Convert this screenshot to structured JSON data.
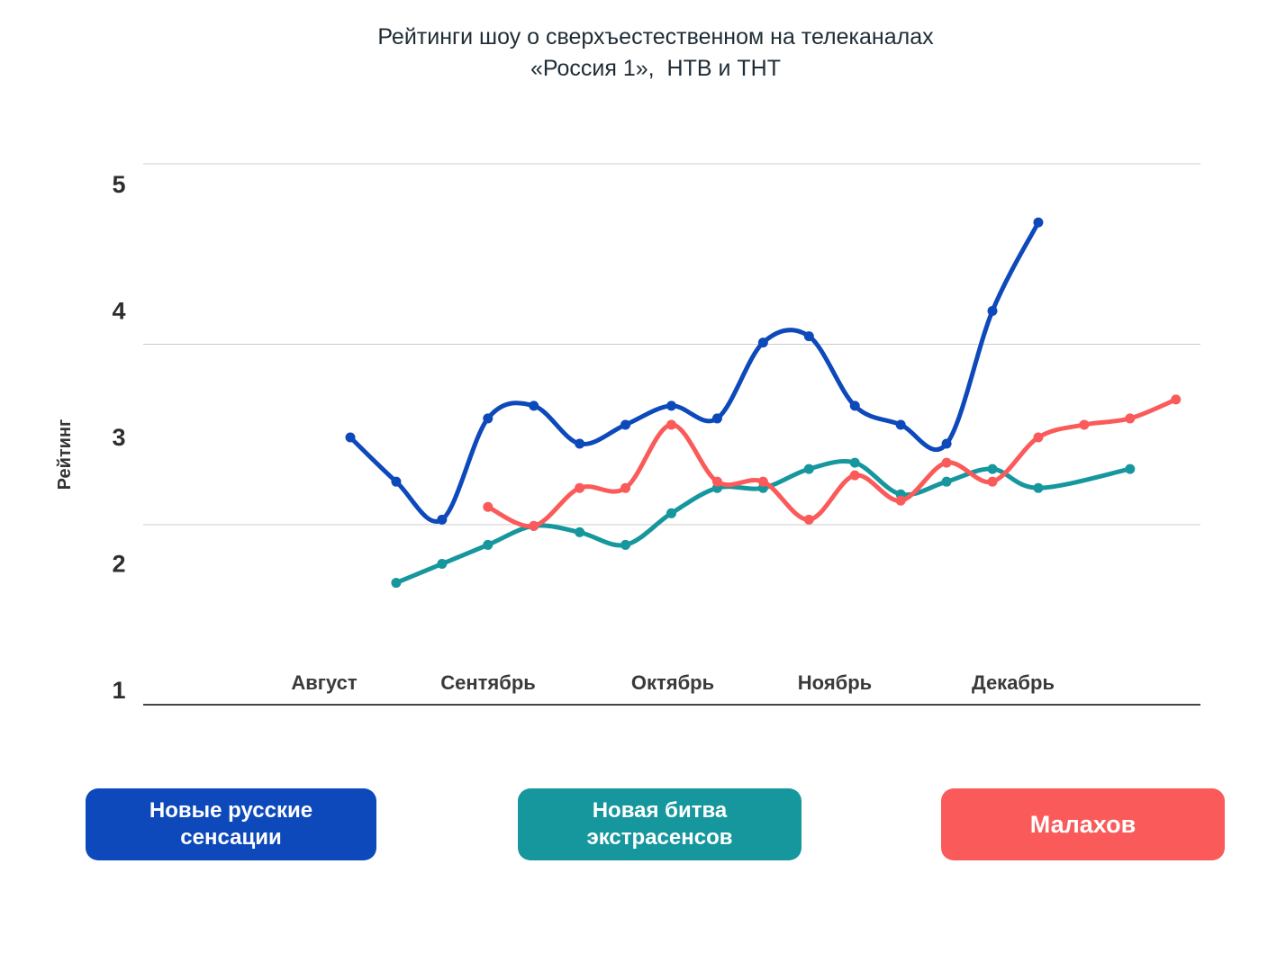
{
  "title": {
    "line1": "Рейтинги шоу о сверхъестественном на телеканалах",
    "line2": "«Россия 1»,  НТВ и ТНТ"
  },
  "chart_data": {
    "type": "line",
    "title": "Рейтинги шоу о сверхъестественном на телеканалах «Россия 1», НТВ и ТНТ",
    "xlabel": "",
    "ylabel": "Рейтинг",
    "ylim": [
      1,
      5
    ],
    "y_ticks": [
      5,
      4,
      3,
      2,
      1
    ],
    "x_unit": "week",
    "weeks": [
      1,
      2,
      3,
      4,
      5,
      6,
      7,
      8,
      9,
      10,
      11,
      12,
      13,
      14,
      15,
      16,
      17,
      18,
      19
    ],
    "x_tick_labels": [
      "Август",
      "Сентябрь",
      "Октябрь",
      "Ноябрь",
      "Декабрь"
    ],
    "grid": "horizontal",
    "legend_position": "bottom",
    "series": [
      {
        "name": "Новые русские сенсации",
        "channel_color": "#0d49ba",
        "values": [
          3.0,
          2.65,
          2.35,
          3.15,
          3.25,
          2.95,
          3.1,
          3.25,
          3.15,
          3.75,
          3.8,
          3.25,
          3.1,
          2.95,
          4.0,
          4.7,
          null,
          null,
          null
        ]
      },
      {
        "name": "Новая битва экстрасенсов",
        "channel_color": "#16969d",
        "values": [
          null,
          1.85,
          2.0,
          2.15,
          2.3,
          2.25,
          2.15,
          2.4,
          2.6,
          2.6,
          2.75,
          2.8,
          2.55,
          2.65,
          2.75,
          2.6,
          null,
          2.75,
          null
        ]
      },
      {
        "name": "Малахов",
        "channel_color": "#fa5b5a",
        "values": [
          null,
          null,
          null,
          2.45,
          2.3,
          2.6,
          2.6,
          3.1,
          2.65,
          2.65,
          2.35,
          2.7,
          2.5,
          2.8,
          2.65,
          3.0,
          3.1,
          3.15,
          3.3
        ]
      }
    ]
  },
  "legend": {
    "buttons": [
      {
        "label": "Новые русские сенсации",
        "color": "#0d49ba"
      },
      {
        "label": "Новая битва экстрасенсов",
        "color": "#16969d"
      },
      {
        "label": "Малахов",
        "color": "#fa5b5a"
      }
    ]
  }
}
